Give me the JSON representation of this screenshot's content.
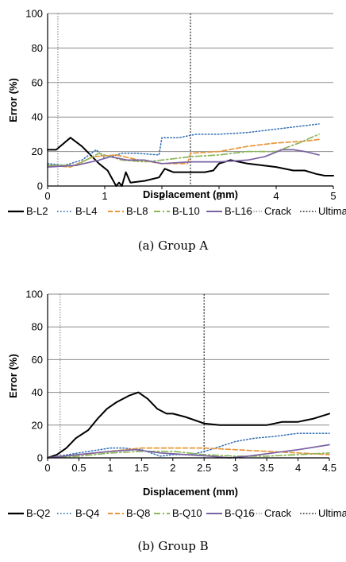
{
  "chart_data": [
    {
      "type": "line",
      "caption": "(a) Group A",
      "xlabel": "Displacement (mm)",
      "ylabel": "Error (%)",
      "xlim": [
        0,
        5
      ],
      "ylim": [
        0,
        100
      ],
      "xticks": [
        "0",
        "1",
        "2",
        "3",
        "4",
        "5"
      ],
      "yticks": [
        "0",
        "20",
        "40",
        "60",
        "80",
        "100"
      ],
      "grid": "horizontal",
      "legend": "bottom",
      "series": [
        {
          "name": "B-L2",
          "color": "#000000",
          "dash": "",
          "width": 2,
          "x": [
            0,
            0.15,
            0.4,
            0.6,
            0.9,
            1.05,
            1.15,
            1.2,
            1.25,
            1.3,
            1.37,
            1.45,
            1.7,
            1.95,
            2.05,
            2.2,
            2.5,
            2.75,
            2.9,
            3.0,
            3.2,
            3.5,
            4.0,
            4.3,
            4.5,
            4.7,
            4.85,
            5.0
          ],
          "y": [
            21,
            21,
            28,
            23,
            13,
            9,
            3,
            0,
            2,
            0,
            8,
            2,
            3,
            5,
            10,
            8,
            8,
            8,
            9,
            13,
            15,
            13,
            11,
            9,
            9,
            7,
            6,
            6
          ]
        },
        {
          "name": "B-L4",
          "color": "#2e6db4",
          "dash": "1.5,2.5",
          "width": 1.5,
          "x": [
            0,
            0.3,
            0.6,
            0.85,
            1.0,
            1.3,
            1.55,
            1.95,
            2.0,
            2.3,
            2.6,
            3.0,
            3.5,
            4.0,
            4.5,
            4.75
          ],
          "y": [
            13,
            12,
            15,
            21,
            16,
            19,
            19,
            18,
            28,
            28,
            30,
            30,
            31,
            33,
            35,
            36
          ]
        },
        {
          "name": "B-L8",
          "color": "#e8973a",
          "dash": "6,3",
          "width": 1.7,
          "x": [
            0,
            0.4,
            0.8,
            1.2,
            1.6,
            2.0,
            2.45,
            2.5,
            3.0,
            3.5,
            4.0,
            4.5,
            4.75
          ],
          "y": [
            12,
            11,
            17,
            18,
            15,
            13,
            13,
            19,
            20,
            23,
            25,
            26,
            27
          ]
        },
        {
          "name": "B-L10",
          "color": "#8db55a",
          "dash": "8,3,2,3",
          "width": 1.7,
          "x": [
            0,
            0.5,
            0.9,
            1.3,
            1.7,
            2.0,
            2.5,
            3.0,
            3.5,
            4.0,
            4.4,
            4.75
          ],
          "y": [
            12,
            12,
            19,
            15,
            14,
            15,
            17,
            18,
            20,
            20,
            25,
            30
          ]
        },
        {
          "name": "B-L16",
          "color": "#7b62a3",
          "dash": "",
          "width": 1.7,
          "x": [
            0,
            0.5,
            0.9,
            1.1,
            1.4,
            1.7,
            2.0,
            2.5,
            3.0,
            3.5,
            3.8,
            4.1,
            4.3,
            4.5,
            4.75
          ],
          "y": [
            11,
            12,
            15,
            17,
            15,
            15,
            13,
            14,
            14,
            15,
            17,
            21,
            21,
            20,
            18
          ]
        }
      ],
      "vlines": [
        {
          "name": "Crack",
          "x": 0.18,
          "color": "#777777",
          "dash": "1.2,2",
          "width": 1.2
        },
        {
          "name": "Ultimate",
          "x": 2.5,
          "color": "#333333",
          "dash": "1.8,2",
          "width": 1.4
        }
      ]
    },
    {
      "type": "line",
      "caption": "(b) Group B",
      "xlabel": "Displacement (mm)",
      "ylabel": "Error (%)",
      "xlim": [
        0,
        4.5
      ],
      "ylim": [
        0,
        100
      ],
      "xticks": [
        "0",
        "0.5",
        "1",
        "1.5",
        "2",
        "2.5",
        "3",
        "3.5",
        "4",
        "4.5"
      ],
      "yticks": [
        "0",
        "20",
        "40",
        "60",
        "80",
        "100"
      ],
      "grid": "horizontal",
      "legend": "bottom",
      "series": [
        {
          "name": "B-Q2",
          "color": "#000000",
          "dash": "",
          "width": 2,
          "x": [
            0,
            0.15,
            0.3,
            0.45,
            0.65,
            0.8,
            0.95,
            1.1,
            1.3,
            1.45,
            1.6,
            1.75,
            1.9,
            2.0,
            2.2,
            2.5,
            2.75,
            3.0,
            3.5,
            3.75,
            4.0,
            4.25,
            4.5
          ],
          "y": [
            0,
            2,
            6,
            12,
            17,
            24,
            30,
            34,
            38,
            40,
            36,
            30,
            27,
            27,
            25,
            21,
            20,
            20,
            20,
            22,
            22,
            24,
            27
          ]
        },
        {
          "name": "B-Q4",
          "color": "#2e6db4",
          "dash": "1.5,2.5",
          "width": 1.5,
          "x": [
            0,
            0.5,
            1.0,
            1.2,
            1.5,
            1.8,
            2.0,
            2.3,
            2.6,
            3.0,
            3.3,
            3.6,
            4.0,
            4.5
          ],
          "y": [
            0,
            3,
            6,
            6,
            5,
            1,
            2,
            2,
            5,
            10,
            12,
            13,
            15,
            15
          ]
        },
        {
          "name": "B-Q8",
          "color": "#e8973a",
          "dash": "6,3",
          "width": 1.7,
          "x": [
            0,
            0.5,
            1.0,
            1.5,
            2.0,
            2.5,
            3.0,
            3.5,
            4.0,
            4.5
          ],
          "y": [
            0,
            2,
            4,
            6,
            6,
            6,
            5,
            4,
            3,
            2
          ]
        },
        {
          "name": "B-Q10",
          "color": "#8db55a",
          "dash": "8,3,2,3",
          "width": 1.7,
          "x": [
            0,
            0.5,
            1.0,
            1.5,
            2.0,
            2.5,
            3.0,
            3.5,
            4.0,
            4.5
          ],
          "y": [
            0,
            1,
            3,
            4,
            4,
            2,
            1,
            1,
            2,
            3
          ]
        },
        {
          "name": "B-Q16",
          "color": "#7b62a3",
          "dash": "",
          "width": 1.7,
          "x": [
            0,
            0.5,
            1.0,
            1.4,
            1.8,
            2.2,
            2.6,
            2.9,
            3.2,
            3.6,
            4.0,
            4.5
          ],
          "y": [
            0,
            2,
            4,
            5,
            3,
            2,
            1,
            0,
            1,
            3,
            5,
            8
          ]
        }
      ],
      "vlines": [
        {
          "name": "Crack",
          "x": 0.2,
          "color": "#777777",
          "dash": "1.2,2",
          "width": 1.2
        },
        {
          "name": "Ultimate",
          "x": 2.5,
          "color": "#333333",
          "dash": "1.8,2",
          "width": 1.4
        }
      ]
    }
  ]
}
